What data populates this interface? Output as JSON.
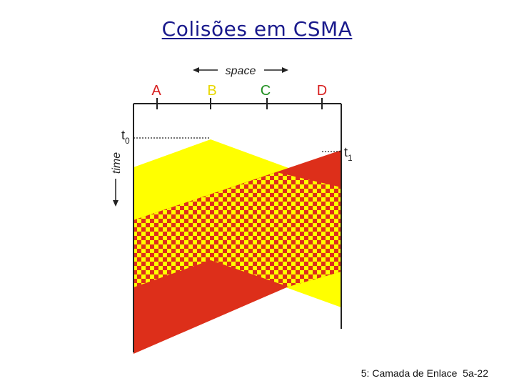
{
  "title": "Colisões em CSMA",
  "footer": "5: Camada de Enlace  5a-22",
  "diagram": {
    "space_label": "space",
    "time_label": "time",
    "stations": [
      {
        "label": "A",
        "color": "#d81f1f"
      },
      {
        "label": "B",
        "color": "#e8d800"
      },
      {
        "label": "C",
        "color": "#1f8f1f"
      },
      {
        "label": "D",
        "color": "#d81f1f"
      }
    ],
    "time_markers": [
      {
        "label": "t",
        "subscript": "0"
      },
      {
        "label": "t",
        "subscript": "1"
      }
    ],
    "colors": {
      "yellow_signal": "#ffff00",
      "red_signal": "#dd2f1a",
      "wire": "#222222"
    }
  }
}
